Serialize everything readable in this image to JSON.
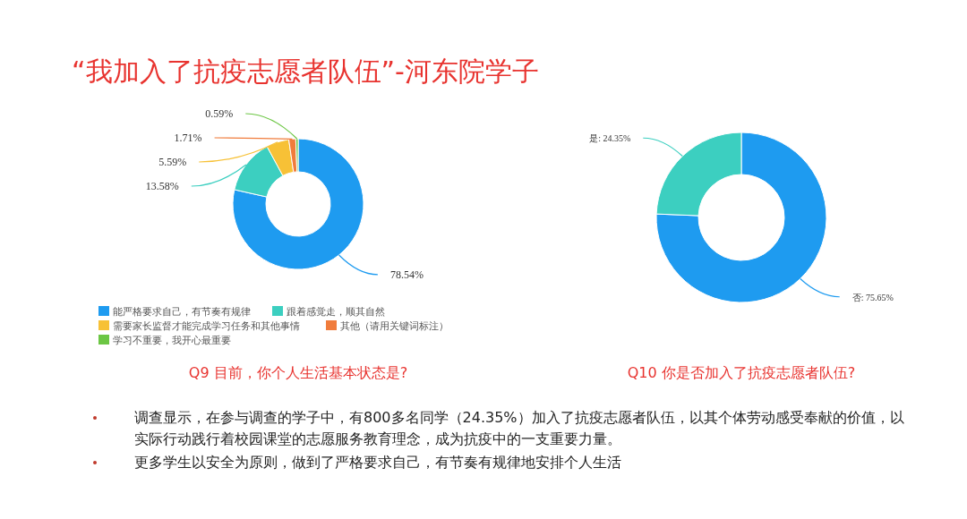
{
  "chart_data": [
    {
      "type": "donut",
      "title": "Q9 目前，你个人生活基本状态是?",
      "categories": [
        "能严格要求自己，有节奏有规律",
        "跟着感觉走，顺其自然",
        "需要家长监督才能完成学习任务和其他事情",
        "其他（请用关键词标注）",
        "学习不重要，我开心最重要"
      ],
      "values": [
        78.54,
        13.58,
        5.59,
        1.71,
        0.59
      ],
      "colors": [
        "#1e9bf0",
        "#3ccfc0",
        "#f7c136",
        "#f07c3c",
        "#6cc644"
      ],
      "value_labels": [
        "78.54%",
        "13.58%",
        "5.59%",
        "1.71%",
        "0.59%"
      ],
      "legend": "bottom",
      "annotations": [
        "“我加入了抗疫志愿者队伍”-河东院学子",
        "调查显示，在参与调查的学子中，有800多名同学（24.35%）加入了抗疫志愿者队伍，以其个体劳动感受奉献的价值，以实际行动践行着校园课堂的志愿服务教育理念，成为抗疫中的一支重要力量。",
        "更多学生以安全为原则，做到了严格要求自己，有节奏有规律地安排个人生活"
      ]
    },
    {
      "type": "donut",
      "title": "Q10 你是否加入了抗疫志愿者队伍?",
      "categories": [
        "否",
        "是"
      ],
      "values": [
        75.65,
        24.35
      ],
      "colors": [
        "#1e9bf0",
        "#3ccfc0"
      ],
      "value_labels": [
        ": 75.65%",
        ": 24.35%"
      ],
      "data_labels": "category",
      "legend": false
    }
  ]
}
